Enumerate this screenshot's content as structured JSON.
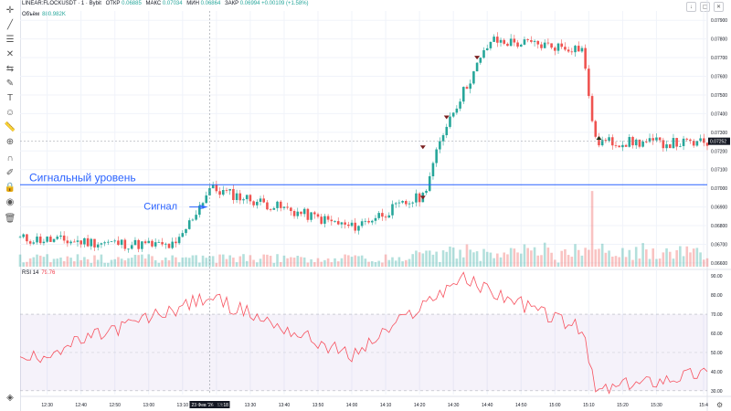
{
  "header": {
    "symbol": "LINEAR:FLOCKUSDT · 1 · Bybit",
    "open_label": "ОТКР",
    "open": "0.06885",
    "high_label": "МАКС",
    "high": "0.07034",
    "low_label": "МИН",
    "low": "0.06864",
    "close_label": "ЗАКР",
    "close": "0.06994",
    "change": "+0.00109 (+1.58%)"
  },
  "volume": {
    "label": "Объём",
    "value": "880.982K"
  },
  "rsi": {
    "label": "RSI 14",
    "value": "79.76"
  },
  "annotations": {
    "level_text": "Сигнальный уровень",
    "signal_text": "Сигнал"
  },
  "colors": {
    "up": "#26a69a",
    "down": "#ef5350",
    "level": "#2962ff",
    "rsi": "#f7525f",
    "rsi_band": "#7e57c2"
  },
  "icons": [
    "crosshair-icon",
    "trendline-icon",
    "fib-icon",
    "pattern-icon",
    "projection-icon",
    "brush-icon",
    "text-icon",
    "emoji-icon",
    "ruler-icon",
    "zoom-icon",
    "magnet-icon",
    "lock-drawings-icon",
    "lock-icon",
    "eye-icon",
    "trash-icon"
  ],
  "chart_data": [
    {
      "type": "candlestick",
      "price_axis_labels": [
        "0.07900",
        "0.07800",
        "0.07700",
        "0.07600",
        "0.07500",
        "0.07400",
        "0.07300",
        "0.07200",
        "0.07100",
        "0.07000",
        "0.06900",
        "0.06800",
        "0.06700",
        "0.06600"
      ],
      "time_axis_labels": [
        "12:30",
        "12:40",
        "12:50",
        "13:00",
        "13:10",
        "13:20",
        "13:30",
        "13:40",
        "13:50",
        "14:00",
        "14:10",
        "14:20",
        "14:30",
        "14:40",
        "14:50",
        "15:00",
        "15:10",
        "15:20",
        "15:30",
        "15:4"
      ],
      "current_price": "0.07252",
      "cursor_time": "23 Фев '26",
      "cursor_time2": "13:18",
      "ylim": [
        0.0658,
        0.0795
      ],
      "signal_level": 0.07019,
      "key_points": [
        {
          "time": "12:22",
          "price": 0.0673
        },
        {
          "time": "13:08",
          "price": 0.0669
        },
        {
          "time": "13:18",
          "price": 0.07
        },
        {
          "time": "14:00",
          "price": 0.0679
        },
        {
          "time": "14:21",
          "price": 0.0696
        },
        {
          "time": "14:28",
          "price": 0.0735
        },
        {
          "time": "14:41",
          "price": 0.0779
        },
        {
          "time": "15:08",
          "price": 0.0775
        },
        {
          "time": "15:12",
          "price": 0.0725
        },
        {
          "time": "15:41",
          "price": 0.0724
        }
      ]
    },
    {
      "type": "line",
      "name": "RSI 14",
      "ylabels": [
        "90.00",
        "80.00",
        "70.00",
        "60.00",
        "50.00",
        "40.00",
        "30.00"
      ],
      "bands": [
        30,
        70
      ],
      "ylim": [
        28,
        92
      ],
      "key_points": [
        {
          "time": "12:22",
          "rsi": 45
        },
        {
          "time": "13:18",
          "rsi": 79
        },
        {
          "time": "14:00",
          "rsi": 48
        },
        {
          "time": "14:32",
          "rsi": 89
        },
        {
          "time": "15:08",
          "rsi": 62
        },
        {
          "time": "15:12",
          "rsi": 30
        },
        {
          "time": "15:41",
          "rsi": 39
        }
      ]
    }
  ]
}
